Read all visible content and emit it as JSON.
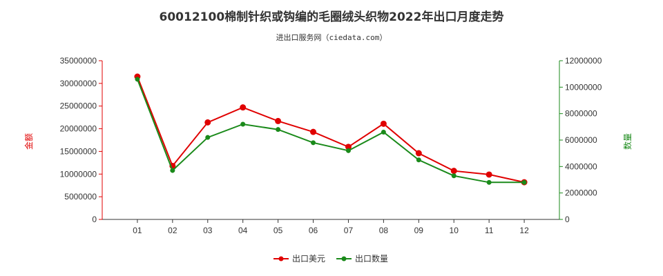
{
  "header": {
    "title": "60012100棉制针织或钩编的毛圈绒头织物2022年出口月度走势",
    "subtitle": "进出口服务网（ciedata.com）"
  },
  "colors": {
    "left_axis": "#e00000",
    "right_axis": "#1a8a1a",
    "series_usd": "#e00000",
    "series_qty": "#1a8a1a",
    "axis_line": "#333333"
  },
  "chart_data": {
    "type": "line",
    "categories": [
      "01",
      "02",
      "03",
      "04",
      "05",
      "06",
      "07",
      "08",
      "09",
      "10",
      "11",
      "12"
    ],
    "series": [
      {
        "name": "出口美元",
        "axis": "left",
        "values": [
          31500000,
          11800000,
          21400000,
          24700000,
          21700000,
          19300000,
          16000000,
          21100000,
          14600000,
          10700000,
          9900000,
          8200000
        ]
      },
      {
        "name": "出口数量",
        "axis": "right",
        "values": [
          10600000,
          3700000,
          6200000,
          7200000,
          6800000,
          5800000,
          5200000,
          6600000,
          4500000,
          3300000,
          2800000,
          2800000
        ]
      }
    ],
    "y_left": {
      "label": "金额",
      "range": [
        0,
        35000000
      ],
      "ticks": [
        "0",
        "5000000",
        "10000000",
        "15000000",
        "20000000",
        "25000000",
        "30000000",
        "35000000"
      ]
    },
    "y_right": {
      "label": "数量",
      "range": [
        0,
        12000000
      ],
      "ticks": [
        "0",
        "2000000",
        "4000000",
        "6000000",
        "8000000",
        "10000000",
        "12000000"
      ]
    },
    "xlabel": "",
    "grid": false,
    "legend_position": "bottom-center"
  }
}
